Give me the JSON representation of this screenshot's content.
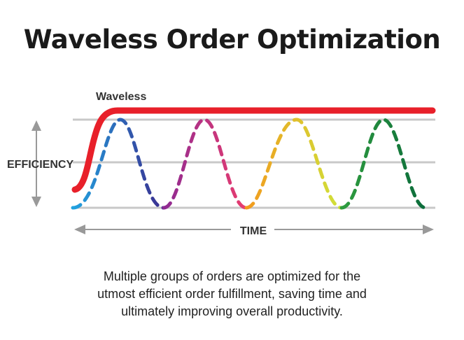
{
  "title": "Waveless Order Optimization",
  "diagram": {
    "waveless_label": "Waveless",
    "y_axis_label": "EFFICIENCY",
    "x_axis_label": "TIME",
    "colors": {
      "waveless_line": "#e8202a",
      "grid_lines": "#c8c8c8",
      "arrows": "#999999",
      "text": "#333333"
    },
    "wave_gradient_colors": [
      [
        "#21a3e0",
        "#3b2d8f"
      ],
      [
        "#8e2a93",
        "#ea3d6f"
      ],
      [
        "#f29a1e",
        "#cfe23a"
      ],
      [
        "#2f9d3f",
        "#0b6b3b"
      ]
    ]
  },
  "caption": [
    "Multiple groups of orders are optimized for the",
    "utmost efficient order fulfillment, saving time and",
    "ultimately improving overall productivity."
  ]
}
